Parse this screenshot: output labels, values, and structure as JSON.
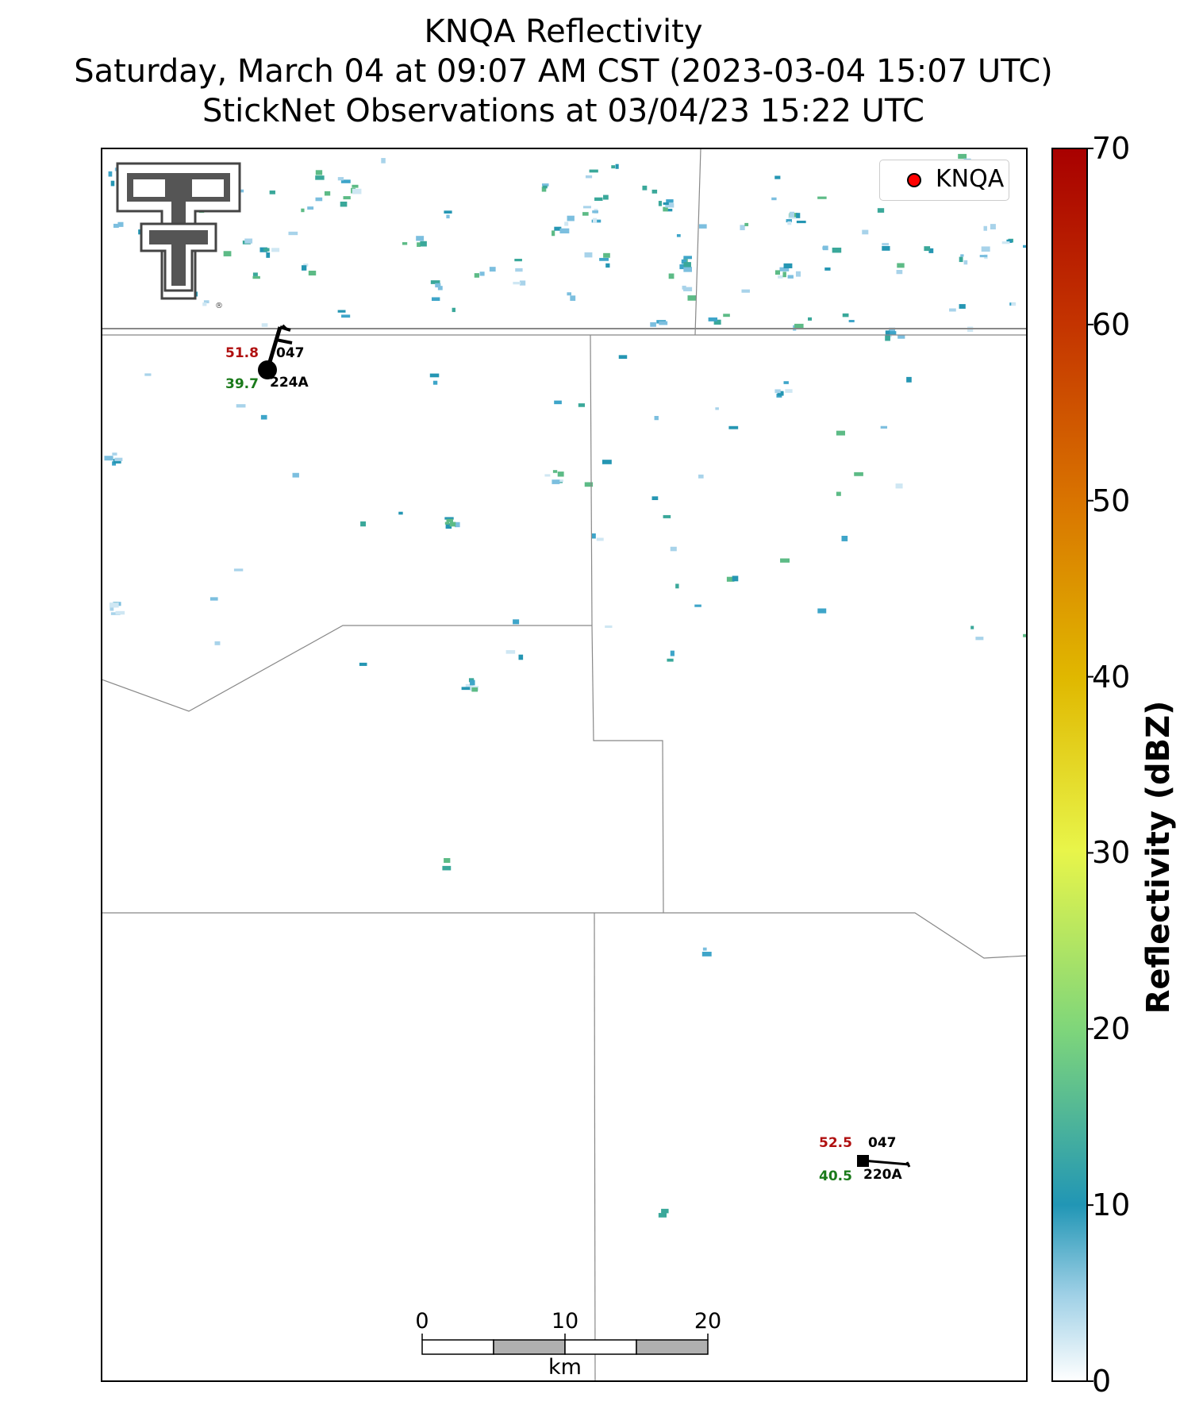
{
  "title": {
    "line1": "KNQA Reflectivity",
    "line2": "Saturday, March 04 at 09:07 AM CST (2023-03-04 15:07 UTC)",
    "line3": "StickNet Observations at 03/04/23 15:22 UTC"
  },
  "legend": {
    "label": "KNQA",
    "marker_color": "#ff0000"
  },
  "colorbar": {
    "label": "Reflectivity (dBZ)",
    "ticks": [
      "0",
      "10",
      "20",
      "30",
      "40",
      "50",
      "60",
      "70"
    ],
    "colors": [
      "#ffffff",
      "#2196b5",
      "#4caf7a",
      "#e8f54a",
      "#e0b800",
      "#d97400",
      "#c94800",
      "#a80000"
    ]
  },
  "scalebar": {
    "ticks": [
      "0",
      "10",
      "20"
    ],
    "unit": "km"
  },
  "stations": [
    {
      "id": "station-224A",
      "temperature": "51.8",
      "dewpoint": "39.7",
      "pressure": "047",
      "name": "224A"
    },
    {
      "id": "station-220A",
      "temperature": "52.5",
      "dewpoint": "40.5",
      "pressure": "047",
      "name": "220A"
    }
  ],
  "logo": {
    "icon": "texas-tech-double-t-logo"
  }
}
